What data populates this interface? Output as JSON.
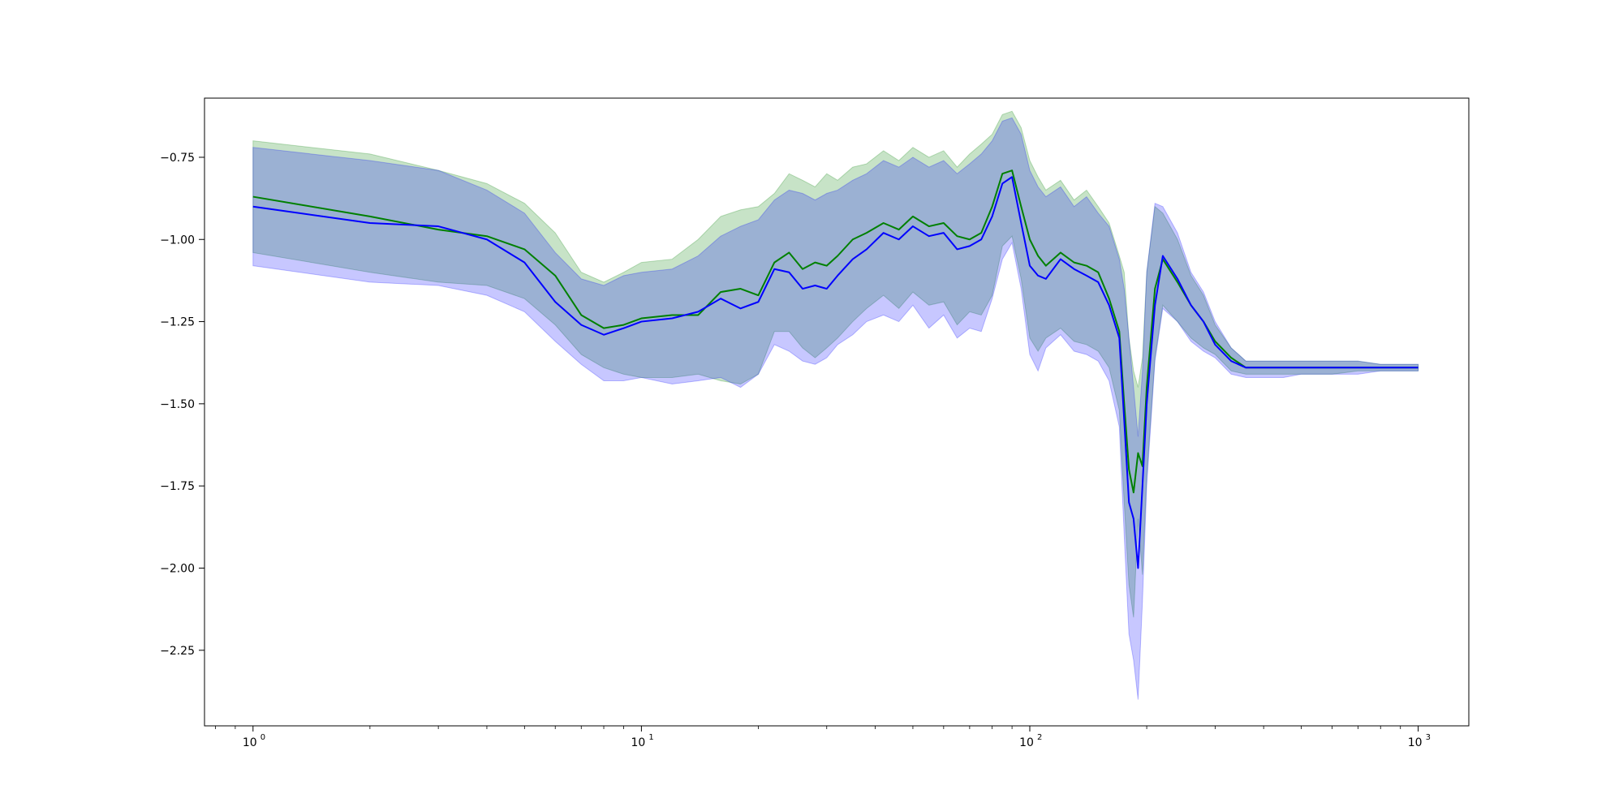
{
  "chart_data": {
    "type": "line",
    "title": "",
    "xlabel": "",
    "ylabel": "",
    "x_scale": "log",
    "xlim": [
      0.75,
      1350
    ],
    "ylim": [
      -2.48,
      -0.57
    ],
    "x_ticks": [
      {
        "value": 1,
        "base": "10",
        "exp": "0"
      },
      {
        "value": 10,
        "base": "10",
        "exp": "1"
      },
      {
        "value": 100,
        "base": "10",
        "exp": "2"
      },
      {
        "value": 1000,
        "base": "10",
        "exp": "3"
      }
    ],
    "y_ticks": [
      {
        "value": -0.75,
        "label": "−0.75"
      },
      {
        "value": -1.0,
        "label": "−1.00"
      },
      {
        "value": -1.25,
        "label": "−1.25"
      },
      {
        "value": -1.5,
        "label": "−1.50"
      },
      {
        "value": -1.75,
        "label": "−1.75"
      },
      {
        "value": -2.0,
        "label": "−2.00"
      },
      {
        "value": -2.25,
        "label": "−2.25"
      }
    ],
    "grid": false,
    "legend": "none",
    "series": [
      {
        "color": "#008000",
        "band_color": "#008000",
        "x": [
          1,
          2,
          3,
          4,
          5,
          6,
          7,
          8,
          9,
          10,
          12,
          14,
          16,
          18,
          20,
          22,
          24,
          26,
          28,
          30,
          32,
          35,
          38,
          42,
          46,
          50,
          55,
          60,
          65,
          70,
          75,
          80,
          85,
          90,
          95,
          100,
          105,
          110,
          120,
          130,
          140,
          150,
          160,
          170,
          175,
          180,
          185,
          190,
          195,
          200,
          210,
          220,
          240,
          260,
          280,
          300,
          330,
          360,
          400,
          450,
          500,
          600,
          700,
          800,
          900,
          1000
        ],
        "y": [
          -0.87,
          -0.93,
          -0.97,
          -0.99,
          -1.03,
          -1.11,
          -1.23,
          -1.27,
          -1.26,
          -1.24,
          -1.23,
          -1.23,
          -1.16,
          -1.15,
          -1.17,
          -1.07,
          -1.04,
          -1.09,
          -1.07,
          -1.08,
          -1.05,
          -1.0,
          -0.98,
          -0.95,
          -0.97,
          -0.93,
          -0.96,
          -0.95,
          -0.99,
          -1.0,
          -0.98,
          -0.9,
          -0.8,
          -0.79,
          -0.9,
          -1.0,
          -1.05,
          -1.08,
          -1.04,
          -1.07,
          -1.08,
          -1.1,
          -1.18,
          -1.28,
          -1.5,
          -1.7,
          -1.77,
          -1.65,
          -1.69,
          -1.45,
          -1.15,
          -1.06,
          -1.13,
          -1.2,
          -1.25,
          -1.31,
          -1.36,
          -1.39,
          -1.39,
          -1.39,
          -1.39,
          -1.39,
          -1.39,
          -1.39,
          -1.39,
          -1.39
        ],
        "upper": [
          -0.7,
          -0.74,
          -0.79,
          -0.83,
          -0.89,
          -0.98,
          -1.1,
          -1.13,
          -1.1,
          -1.07,
          -1.06,
          -1.0,
          -0.93,
          -0.91,
          -0.9,
          -0.86,
          -0.8,
          -0.82,
          -0.84,
          -0.8,
          -0.82,
          -0.78,
          -0.77,
          -0.73,
          -0.76,
          -0.72,
          -0.75,
          -0.73,
          -0.78,
          -0.74,
          -0.71,
          -0.68,
          -0.62,
          -0.61,
          -0.66,
          -0.76,
          -0.81,
          -0.85,
          -0.82,
          -0.88,
          -0.85,
          -0.9,
          -0.95,
          -1.05,
          -1.1,
          -1.3,
          -1.4,
          -1.45,
          -1.36,
          -1.1,
          -0.9,
          -0.92,
          -1.0,
          -1.11,
          -1.17,
          -1.26,
          -1.33,
          -1.37,
          -1.37,
          -1.37,
          -1.37,
          -1.37,
          -1.37,
          -1.38,
          -1.38,
          -1.38
        ],
        "lower": [
          -1.04,
          -1.1,
          -1.13,
          -1.14,
          -1.18,
          -1.26,
          -1.35,
          -1.39,
          -1.41,
          -1.42,
          -1.42,
          -1.41,
          -1.43,
          -1.44,
          -1.41,
          -1.28,
          -1.28,
          -1.33,
          -1.36,
          -1.33,
          -1.3,
          -1.25,
          -1.21,
          -1.17,
          -1.21,
          -1.16,
          -1.2,
          -1.19,
          -1.26,
          -1.22,
          -1.23,
          -1.17,
          -1.02,
          -0.99,
          -1.12,
          -1.3,
          -1.34,
          -1.3,
          -1.27,
          -1.31,
          -1.32,
          -1.34,
          -1.39,
          -1.52,
          -1.8,
          -2.05,
          -2.15,
          -1.85,
          -2.02,
          -1.72,
          -1.36,
          -1.2,
          -1.25,
          -1.3,
          -1.33,
          -1.35,
          -1.4,
          -1.41,
          -1.41,
          -1.41,
          -1.41,
          -1.41,
          -1.4,
          -1.4,
          -1.4,
          -1.4
        ]
      },
      {
        "color": "#0000ff",
        "band_color": "#0000ff",
        "x": [
          1,
          2,
          3,
          4,
          5,
          6,
          7,
          8,
          9,
          10,
          12,
          14,
          16,
          18,
          20,
          22,
          24,
          26,
          28,
          30,
          32,
          35,
          38,
          42,
          46,
          50,
          55,
          60,
          65,
          70,
          75,
          80,
          85,
          90,
          95,
          100,
          105,
          110,
          120,
          130,
          140,
          150,
          160,
          170,
          175,
          180,
          185,
          190,
          195,
          200,
          210,
          220,
          240,
          260,
          280,
          300,
          330,
          360,
          400,
          450,
          500,
          600,
          700,
          800,
          900,
          1000
        ],
        "y": [
          -0.9,
          -0.95,
          -0.96,
          -1.0,
          -1.07,
          -1.19,
          -1.26,
          -1.29,
          -1.27,
          -1.25,
          -1.24,
          -1.22,
          -1.18,
          -1.21,
          -1.19,
          -1.09,
          -1.1,
          -1.15,
          -1.14,
          -1.15,
          -1.11,
          -1.06,
          -1.03,
          -0.98,
          -1.0,
          -0.96,
          -0.99,
          -0.98,
          -1.03,
          -1.02,
          -1.0,
          -0.93,
          -0.83,
          -0.81,
          -0.95,
          -1.08,
          -1.11,
          -1.12,
          -1.06,
          -1.09,
          -1.11,
          -1.13,
          -1.2,
          -1.3,
          -1.55,
          -1.8,
          -1.85,
          -2.0,
          -1.75,
          -1.5,
          -1.2,
          -1.05,
          -1.12,
          -1.2,
          -1.25,
          -1.32,
          -1.37,
          -1.39,
          -1.39,
          -1.39,
          -1.39,
          -1.39,
          -1.39,
          -1.39,
          -1.39,
          -1.39
        ],
        "upper": [
          -0.72,
          -0.76,
          -0.79,
          -0.85,
          -0.92,
          -1.04,
          -1.12,
          -1.14,
          -1.11,
          -1.1,
          -1.09,
          -1.05,
          -0.99,
          -0.96,
          -0.94,
          -0.88,
          -0.85,
          -0.86,
          -0.88,
          -0.86,
          -0.85,
          -0.82,
          -0.8,
          -0.76,
          -0.78,
          -0.75,
          -0.78,
          -0.76,
          -0.8,
          -0.77,
          -0.74,
          -0.7,
          -0.64,
          -0.63,
          -0.68,
          -0.79,
          -0.84,
          -0.87,
          -0.84,
          -0.9,
          -0.87,
          -0.92,
          -0.96,
          -1.06,
          -1.15,
          -1.3,
          -1.45,
          -1.6,
          -1.4,
          -1.1,
          -0.89,
          -0.9,
          -0.98,
          -1.1,
          -1.16,
          -1.25,
          -1.33,
          -1.37,
          -1.37,
          -1.37,
          -1.37,
          -1.37,
          -1.37,
          -1.38,
          -1.38,
          -1.38
        ],
        "lower": [
          -1.08,
          -1.13,
          -1.14,
          -1.17,
          -1.22,
          -1.31,
          -1.38,
          -1.43,
          -1.43,
          -1.42,
          -1.44,
          -1.43,
          -1.42,
          -1.45,
          -1.41,
          -1.32,
          -1.34,
          -1.37,
          -1.38,
          -1.36,
          -1.32,
          -1.29,
          -1.25,
          -1.23,
          -1.25,
          -1.2,
          -1.27,
          -1.23,
          -1.3,
          -1.27,
          -1.28,
          -1.18,
          -1.06,
          -1.01,
          -1.15,
          -1.35,
          -1.4,
          -1.33,
          -1.29,
          -1.34,
          -1.35,
          -1.37,
          -1.43,
          -1.57,
          -1.9,
          -2.2,
          -2.28,
          -2.4,
          -2.1,
          -1.75,
          -1.37,
          -1.21,
          -1.25,
          -1.31,
          -1.34,
          -1.36,
          -1.41,
          -1.42,
          -1.42,
          -1.42,
          -1.41,
          -1.41,
          -1.41,
          -1.4,
          -1.4,
          -1.4
        ]
      }
    ]
  }
}
